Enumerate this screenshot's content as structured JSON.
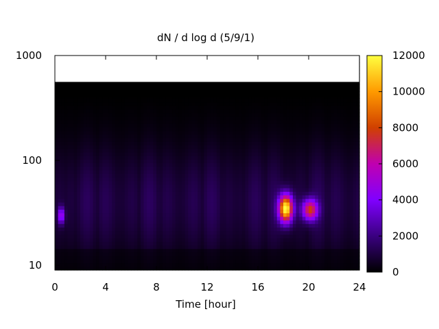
{
  "chart_data": {
    "type": "heatmap",
    "title": "dN / d log d (5/9/1)",
    "xlabel": "Time [hour]",
    "ylabel": "",
    "x_ticks": [
      0,
      4,
      8,
      12,
      16,
      20,
      24
    ],
    "xlim": [
      0,
      24
    ],
    "y_scale": "log",
    "y_ticks": [
      10,
      100,
      1000
    ],
    "ylim": [
      9,
      1000
    ],
    "colorbar": {
      "ticks": [
        0,
        2000,
        4000,
        6000,
        8000,
        10000,
        12000
      ],
      "range": [
        0,
        12000
      ],
      "palette": [
        "#000000",
        "#3a0080",
        "#8000ff",
        "#c000b0",
        "#d04000",
        "#ff9a00",
        "#ffff40"
      ]
    },
    "grid": false,
    "background_color": "#000000",
    "features": [
      {
        "description": "broad weak background",
        "x_range": [
          0,
          24
        ],
        "y_range": [
          10,
          400
        ],
        "value": 1500
      },
      {
        "description": "peak",
        "x": 18.2,
        "y": 35,
        "value": 11500
      },
      {
        "description": "secondary peak",
        "x": 20.1,
        "y": 34,
        "value": 7000
      },
      {
        "description": "small spot",
        "x": 0.5,
        "y": 30,
        "value": 4500
      }
    ]
  }
}
